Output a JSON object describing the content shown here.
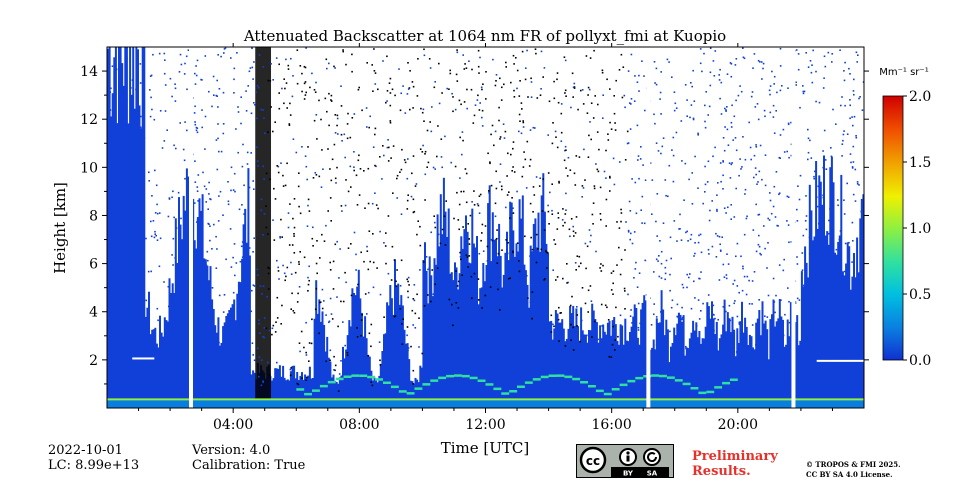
{
  "chart_data": {
    "type": "heatmap",
    "title": "Attenuated Backscatter at 1064 nm FR of pollyxt_fmi at Kuopio",
    "xlabel": "Time [UTC]",
    "ylabel": "Height [km]",
    "xlim": [
      0,
      24
    ],
    "ylim": [
      0,
      15
    ],
    "x_ticks": [
      4,
      8,
      12,
      16,
      20
    ],
    "x_tick_labels": [
      "04:00",
      "08:00",
      "12:00",
      "16:00",
      "20:00"
    ],
    "y_ticks": [
      2,
      4,
      6,
      8,
      10,
      12,
      14
    ],
    "y_tick_labels": [
      "2",
      "4",
      "6",
      "8",
      "10",
      "12",
      "14"
    ],
    "colorbar": {
      "label": "Mm⁻¹ sr⁻¹",
      "min": 0.0,
      "max": 2.0,
      "ticks": [
        0.0,
        0.5,
        1.0,
        1.5,
        2.0
      ],
      "tick_labels": [
        "0.0",
        "0.5",
        "1.0",
        "1.5",
        "2.0"
      ],
      "colormap": [
        "#1030d0",
        "#0a7ee0",
        "#00c0e0",
        "#30e0a0",
        "#90f040",
        "#f0f000",
        "#f0a000",
        "#f05000",
        "#d00000"
      ]
    },
    "features": {
      "aerosol_layer_top_km": 2.1,
      "cloud_top_km": 0.4,
      "noise_region_color": "#000000",
      "background_color": "#1040d8",
      "signal_gaps_hours": [
        2.6,
        17.1,
        21.7
      ]
    }
  },
  "footer": {
    "date": "2022-10-01",
    "lc": "LC: 8.99e+13",
    "version": "Version: 4.0",
    "calibration": "Calibration: True",
    "preliminary_line1": "Preliminary",
    "preliminary_line2": "Results.",
    "copyright_line1": "© TROPOS & FMI 2025.",
    "copyright_line2": "CC BY SA 4.0 License.",
    "cc_by": "BY",
    "cc_sa": "SA"
  }
}
